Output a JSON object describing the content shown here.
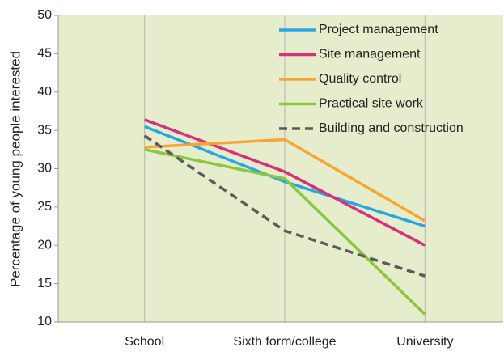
{
  "chart_data": {
    "type": "line",
    "y_label": "Percentage of young people interested",
    "categories": [
      "School",
      "Sixth form/college",
      "University"
    ],
    "series": [
      {
        "name": "Project management",
        "color": "#29a8e0",
        "values": [
          35.5,
          28.3,
          22.5
        ]
      },
      {
        "name": "Site management",
        "color": "#d6307a",
        "values": [
          36.4,
          29.6,
          20.0
        ]
      },
      {
        "name": "Quality control",
        "color": "#f7a631",
        "values": [
          32.8,
          33.8,
          23.2
        ]
      },
      {
        "name": "Practical site work",
        "color": "#8cc63f",
        "values": [
          32.5,
          28.7,
          11.0
        ]
      },
      {
        "name": "Building and construction",
        "color": "#5b5b5b",
        "dashed": true,
        "values": [
          34.3,
          21.9,
          16.0
        ]
      }
    ],
    "ylim": [
      10,
      50
    ],
    "yticks": [
      10,
      15,
      20,
      25,
      30,
      35,
      40,
      45,
      50
    ],
    "background": "#e6edcc",
    "legend": "upper right"
  }
}
